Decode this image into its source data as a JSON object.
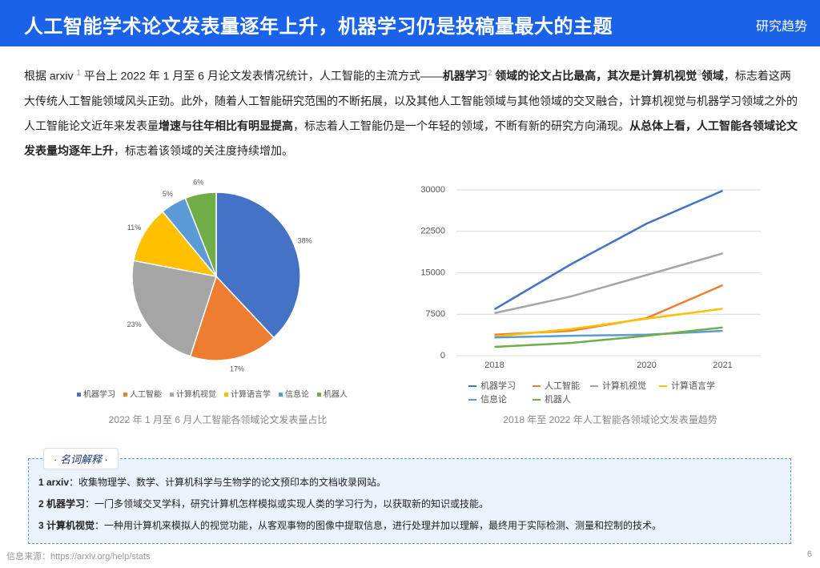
{
  "header": {
    "title": "人工智能学术论文发表量逐年上升，机器学习仍是投稿量最大的主题",
    "tag": "研究趋势"
  },
  "paragraph": {
    "segments": [
      {
        "text": "根据 arxiv "
      },
      {
        "text": "1",
        "sup": true
      },
      {
        "text": " 平台上 2022 年 1 月至 6 月论文发表情况统计，人工智能的主流方式——"
      },
      {
        "text": "机器学习",
        "bold": true
      },
      {
        "text": "2",
        "sup": true
      },
      {
        "text": " 领域的论文占比最高，其次是计算机视觉",
        "bold": true
      },
      {
        "text": "3",
        "sup": true
      },
      {
        "text": "领域",
        "bold": true
      },
      {
        "text": "，标志着这两大传统人工智能领域风头正劲。此外，随着人工智能研究范围的不断拓展，以及其他人工智能领域与其他领域的交叉融合，计算机视觉与机器学习领域之外的人工智能论文近年来发表量"
      },
      {
        "text": "增速与往年相比有明显提高",
        "bold": true
      },
      {
        "text": "，标志着人工智能仍是一个年轻的领域，不断有新的研究方向涌现。"
      },
      {
        "text": "从总体上看，人工智能各领域论文发表量均逐年上升",
        "bold": true
      },
      {
        "text": "，标志着该领域的关注度持续增加。"
      }
    ]
  },
  "chart_data": [
    {
      "type": "pie",
      "caption": "2022 年 1 月至 6 月人工智能各领域论文发表量占比",
      "categories": [
        "机器学习",
        "人工智能",
        "计算机视觉",
        "计算语言学",
        "信息论",
        "机器人"
      ],
      "values": [
        38,
        17,
        23,
        11,
        5,
        6
      ],
      "value_labels": [
        "38%",
        "17%",
        "23%",
        "11%",
        "5%",
        "6%"
      ],
      "colors": [
        "#4472c4",
        "#ed7d31",
        "#a5a5a5",
        "#ffc000",
        "#5b9bd5",
        "#70ad47"
      ],
      "legend": "bottom"
    },
    {
      "type": "line",
      "caption": "2018 年至 2022 年人工智能各领域论文发表量趋势",
      "categories": [
        "2018",
        null,
        "2020",
        "2021"
      ],
      "series": [
        {
          "name": "机器学习",
          "color": "#4472c4",
          "values": [
            8400,
            16500,
            23900,
            29850
          ]
        },
        {
          "name": "人工智能",
          "color": "#ed7d31",
          "values": [
            3800,
            4500,
            6800,
            12750
          ]
        },
        {
          "name": "计算机视觉",
          "color": "#a5a5a5",
          "values": [
            7700,
            10700,
            14600,
            18500
          ]
        },
        {
          "name": "计算语言学",
          "color": "#ffc000",
          "values": [
            3500,
            4800,
            6700,
            8500
          ]
        },
        {
          "name": "信息论",
          "color": "#5b9bd5",
          "values": [
            3300,
            3600,
            3800,
            4500
          ]
        },
        {
          "name": "机器人",
          "color": "#70ad47",
          "values": [
            1600,
            2300,
            3600,
            5100
          ]
        }
      ],
      "ylim": [
        0,
        30000
      ],
      "yticks": [
        0,
        7500,
        15000,
        22500,
        30000
      ],
      "grid": true,
      "legend": "bottom"
    }
  ],
  "glossary": {
    "title": "· 名词解释 ·",
    "items": [
      {
        "term": "1 arxiv",
        "text": "：收集物理学、数学、计算机科学与生物学的论文预印本的文档收录网站。"
      },
      {
        "term": "2 机器学习",
        "text": "：一门多领域交叉学科，研究计算机怎样模拟或实现人类的学习行为，以获取新的知识或技能。"
      },
      {
        "term": "3 计算机视觉",
        "text": "：一种用计算机来模拟人的视觉功能，从客观事物的图像中提取信息，进行处理并加以理解，最终用于实际检测、测量和控制的技术。"
      }
    ]
  },
  "footer": {
    "source": "信息来源：https://arxiv.org/help/stats",
    "page": "6"
  }
}
